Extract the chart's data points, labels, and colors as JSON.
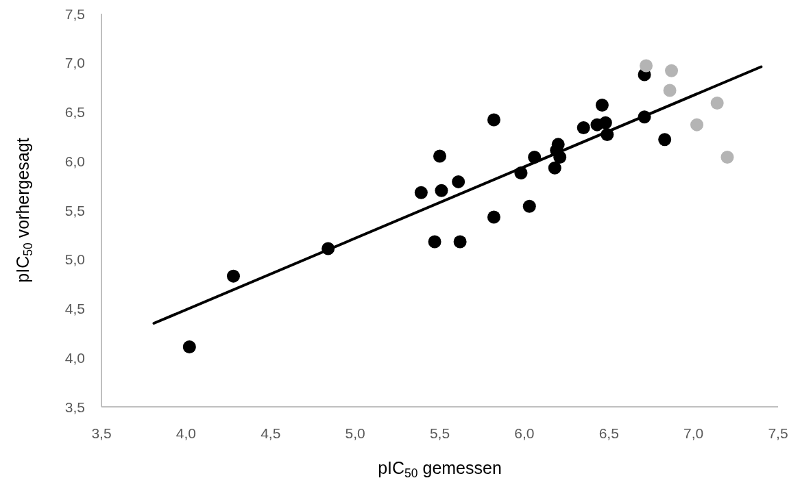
{
  "chart_data": {
    "type": "scatter",
    "xlabel": "pIC$_{50}$ gemessen",
    "ylabel": "pIC$_{50}$ vorhergesagt",
    "xlim": [
      3.5,
      7.5
    ],
    "xticks": [
      {
        "value": 3.5,
        "label": "3,5"
      },
      {
        "value": 4,
        "label": "4,0"
      },
      {
        "value": 4.5,
        "label": "4,5"
      },
      {
        "value": 5,
        "label": "5,0"
      },
      {
        "value": 5.5,
        "label": "5,5"
      },
      {
        "value": 6,
        "label": "6,0"
      },
      {
        "value": 6.5,
        "label": "6,5"
      },
      {
        "value": 7,
        "label": "7,0"
      },
      {
        "value": 7.5,
        "label": "7,5"
      }
    ],
    "ylim": [
      3.5,
      7.5
    ],
    "yticks": [
      {
        "value": 3.5,
        "label": "3,5"
      },
      {
        "value": 4,
        "label": "4,0"
      },
      {
        "value": 4.5,
        "label": "4,5"
      },
      {
        "value": 5,
        "label": "5,0"
      },
      {
        "value": 5.5,
        "label": "5,5"
      },
      {
        "value": 6,
        "label": "6,0"
      },
      {
        "value": 6.5,
        "label": "6,5"
      },
      {
        "value": 7,
        "label": "7,0"
      },
      {
        "value": 7.5,
        "label": "7,5"
      }
    ],
    "grid": false,
    "marker": "circle",
    "series": [
      {
        "color": "#000000",
        "x": [
          6.71,
          6.71,
          6.83,
          6.46,
          6.48,
          6.43,
          6.35,
          6.49,
          6.2,
          6.19,
          6.21,
          6.18,
          6.06,
          5.98,
          6.03,
          5.82,
          5.82,
          5.5,
          5.61,
          5.51,
          5.39,
          5.47,
          5.62,
          4.28,
          4.84,
          4.02
        ],
        "values": [
          6.88,
          6.45,
          6.22,
          6.57,
          6.39,
          6.37,
          6.34,
          6.27,
          6.17,
          6.11,
          6.04,
          5.93,
          6.04,
          5.88,
          5.54,
          6.42,
          5.43,
          6.05,
          5.79,
          5.7,
          5.68,
          5.18,
          5.18,
          4.83,
          5.11,
          4.11
        ]
      },
      {
        "color": "#b4b4b4",
        "x": [
          6.72,
          6.87,
          6.86,
          7.14,
          7.02,
          7.2
        ],
        "values": [
          6.97,
          6.92,
          6.72,
          6.59,
          6.37,
          6.04
        ]
      },
      {
        "type": "line",
        "color": "#000000",
        "marker": "none",
        "line_style": "solid",
        "x": [
          3.81,
          7.4
        ],
        "values": [
          4.35,
          6.96
        ]
      }
    ]
  }
}
